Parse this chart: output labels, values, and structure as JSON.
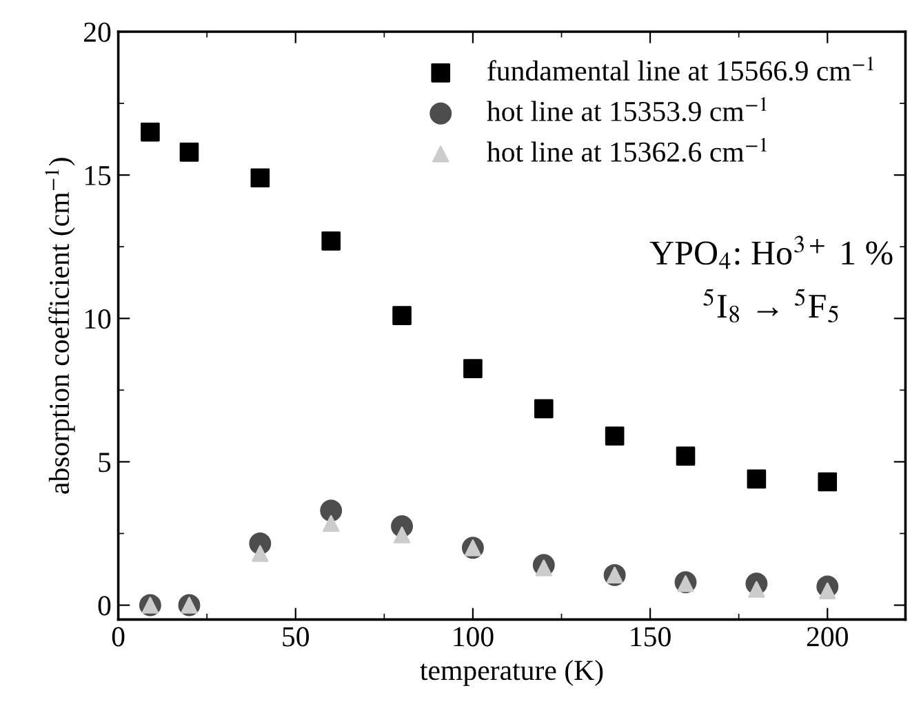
{
  "chart_data": {
    "type": "scatter",
    "xlabel": "temperature (K)",
    "ylabel": "absorption coefficient (cm$^{−1}$)",
    "x": [
      9,
      20,
      40,
      60,
      80,
      100,
      120,
      140,
      160,
      180,
      200
    ],
    "series": [
      {
        "name": "fundamental line at 15566.9 cm$^{−1}$",
        "color": "#000000",
        "marker": "square",
        "values": [
          16.5,
          15.8,
          14.9,
          12.7,
          10.1,
          8.25,
          6.85,
          5.9,
          5.2,
          4.4,
          4.3
        ]
      },
      {
        "name": "hot line at 15353.9 cm$^{−1}$",
        "color": "#4d4d4d",
        "marker": "circle",
        "values": [
          0,
          0,
          2.15,
          3.3,
          2.75,
          2.0,
          1.4,
          1.05,
          0.8,
          0.75,
          0.65
        ]
      },
      {
        "name": "hot line at 15362.6 cm$^{−1}$",
        "color": "#cccccc",
        "marker": "triangle",
        "values": [
          0,
          0,
          1.8,
          2.85,
          2.45,
          2.0,
          1.3,
          1.05,
          0.75,
          0.55,
          0.5
        ]
      }
    ],
    "annotations": [
      {
        "text": "YPO$_{4}$: Ho$^{3+}$ 1 %"
      },
      {
        "text": "$^{5}$I$_{8}$ → $^{5}$F$_{5}$"
      }
    ],
    "xlim": [
      0,
      222
    ],
    "ylim": [
      -0.5,
      20
    ],
    "xticks": [
      0,
      50,
      100,
      150,
      200
    ],
    "yticks": [
      0,
      5,
      10,
      15,
      20
    ],
    "grid": false,
    "legend": "top right"
  }
}
